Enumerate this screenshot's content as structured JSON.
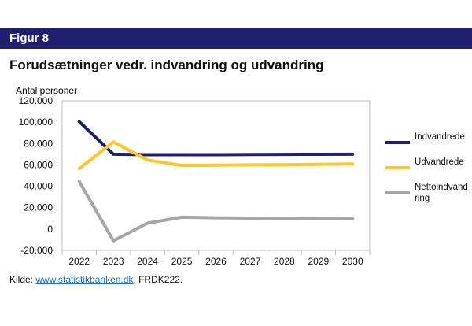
{
  "figure_label": "Figur 8",
  "source": {
    "prefix": "Kilde:",
    "link_text": "www.statistikbanken.dk",
    "suffix": ", FRDK222."
  },
  "chart_data": {
    "type": "line",
    "title": "Forudsætninger vedr. indvandring og udvandring",
    "ylabel": "Antal personer",
    "xlabel": "",
    "x": [
      "2022",
      "2023",
      "2024",
      "2025",
      "2026",
      "2027",
      "2028",
      "2029",
      "2030"
    ],
    "ylim": [
      -20000,
      120000
    ],
    "yticks": [
      -20000,
      0,
      20000,
      40000,
      60000,
      80000,
      100000,
      120000
    ],
    "ytick_labels": [
      "-20.000",
      "0",
      "20.000",
      "40.000",
      "60.000",
      "80.000",
      "100.000",
      "120.000"
    ],
    "grid": false,
    "legend_position": "right",
    "series": [
      {
        "name": "Indvandrede",
        "color": "#1f1f6f",
        "values": [
          100500,
          70000,
          69500,
          69500,
          69500,
          69700,
          69800,
          69900,
          70000
        ]
      },
      {
        "name": "Udvandrede",
        "color": "#ffc72c",
        "values": [
          56500,
          81500,
          64500,
          59500,
          59700,
          60000,
          60200,
          60500,
          60800
        ]
      },
      {
        "name": "Nettoindvand\nring",
        "color": "#a3a6ab",
        "values": [
          44500,
          -11000,
          5500,
          11000,
          10500,
          10200,
          9900,
          9700,
          9500
        ]
      }
    ]
  }
}
